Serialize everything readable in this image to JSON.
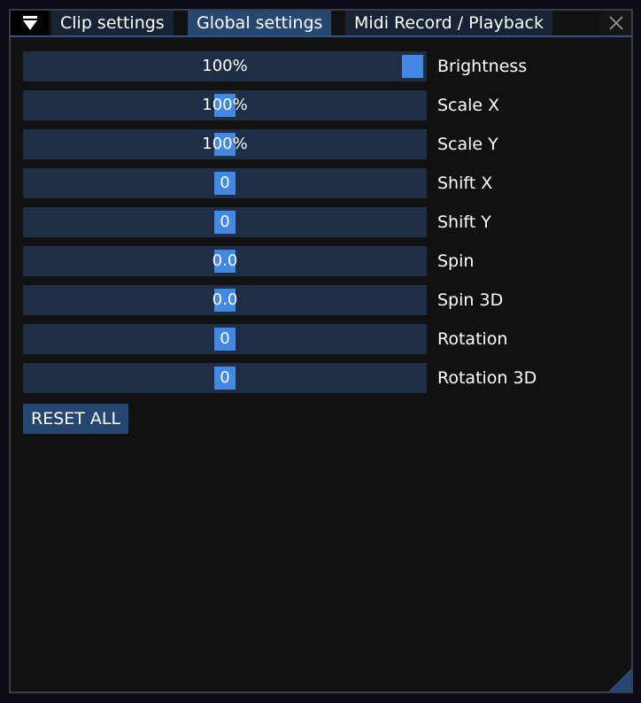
{
  "tabs": [
    {
      "label": "Clip settings",
      "active": false
    },
    {
      "label": "Global settings",
      "active": true
    },
    {
      "label": "Midi Record / Playback",
      "active": false
    }
  ],
  "colors": {
    "accent": "#4388e3",
    "slider_bg": "#1f2e47",
    "active_tab": "#264770",
    "button": "#244670"
  },
  "icons": {
    "collapse": "triangle-down-icon",
    "close": "close-icon"
  },
  "sliders": [
    {
      "label": "Brightness",
      "value": "100%",
      "fraction": 1.0
    },
    {
      "label": "Scale X",
      "value": "100%",
      "fraction": 0.5
    },
    {
      "label": "Scale Y",
      "value": "100%",
      "fraction": 0.5
    },
    {
      "label": "Shift X",
      "value": "0",
      "fraction": 0.5
    },
    {
      "label": "Shift Y",
      "value": "0",
      "fraction": 0.5
    },
    {
      "label": "Spin",
      "value": "0.0",
      "fraction": 0.5
    },
    {
      "label": "Spin 3D",
      "value": "0.0",
      "fraction": 0.5
    },
    {
      "label": "Rotation",
      "value": "0",
      "fraction": 0.5
    },
    {
      "label": "Rotation 3D",
      "value": "0",
      "fraction": 0.5
    }
  ],
  "reset_label": "RESET ALL"
}
